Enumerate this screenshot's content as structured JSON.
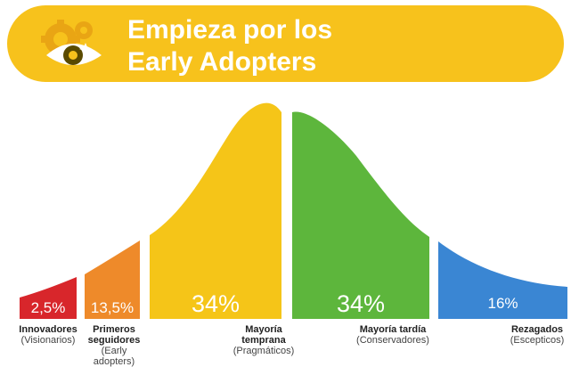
{
  "header": {
    "line1": "Empieza por los",
    "line2": "Early Adopters",
    "icon": "eye-gears-icon",
    "background": "#f7c21c"
  },
  "segments": [
    {
      "key": "innovadores",
      "percent_label": "2,5%",
      "share": 2.5,
      "label_bold": "Innovadores",
      "label_sub": "(Visionarios)",
      "color": "#d8262b"
    },
    {
      "key": "primeros",
      "percent_label": "13,5%",
      "share": 13.5,
      "label_bold": "Primeros seguidores",
      "label_sub": "(Early adopters)",
      "color": "#ee8a2a"
    },
    {
      "key": "temprana",
      "percent_label": "34%",
      "share": 34,
      "label_bold": "Mayoría temprana",
      "label_sub": "(Pragmáticos)",
      "color": "#f5c518"
    },
    {
      "key": "tardia",
      "percent_label": "34%",
      "share": 34,
      "label_bold": "Mayoría tardía",
      "label_sub": "(Conservadores)",
      "color": "#5db63c"
    },
    {
      "key": "rezagados",
      "percent_label": "16%",
      "share": 16,
      "label_bold": "Rezagados",
      "label_sub": "(Escepticos)",
      "color": "#3a86d3"
    }
  ]
}
